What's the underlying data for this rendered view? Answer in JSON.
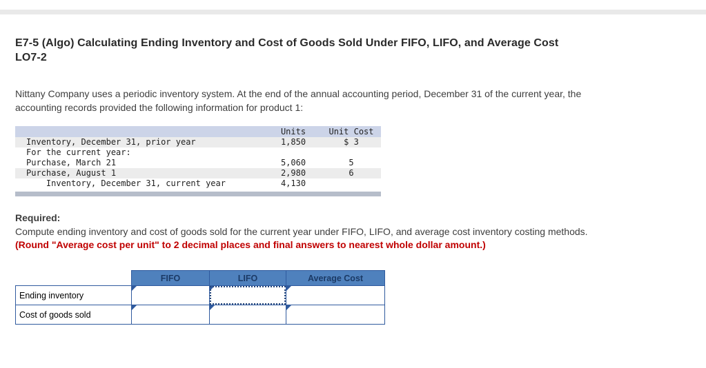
{
  "problem": {
    "title_line1": "E7-5 (Algo) Calculating Ending Inventory and Cost of Goods Sold Under FIFO, LIFO, and Average Cost",
    "title_line2": "LO7-2",
    "intro_line1": "Nittany Company uses a periodic inventory system. At the end of the annual accounting period, December 31 of the current year, the",
    "intro_line2": "accounting records provided the following information for product 1:"
  },
  "inventory_table": {
    "headers": {
      "units": "Units",
      "unit_cost": "Unit Cost"
    },
    "rows": [
      {
        "label": "Inventory, December 31, prior year",
        "units": "1,850",
        "unit_cost": "$ 3"
      },
      {
        "label": "For the current year:",
        "units": "",
        "unit_cost": ""
      },
      {
        "label": "Purchase, March 21",
        "units": "5,060",
        "unit_cost": "5"
      },
      {
        "label": "Purchase, August 1",
        "units": "2,980",
        "unit_cost": "6"
      },
      {
        "label": "    Inventory, December 31, current year",
        "units": "4,130",
        "unit_cost": ""
      }
    ]
  },
  "required": {
    "heading": "Required:",
    "instruction": "Compute ending inventory and cost of goods sold for the current year under FIFO, LIFO, and average cost inventory costing methods.",
    "rounding_note": "(Round \"Average cost per unit\" to 2 decimal places and final answers to nearest whole dollar amount.)"
  },
  "answer_table": {
    "columns": [
      "FIFO",
      "LIFO",
      "Average Cost"
    ],
    "rows": [
      {
        "label": "Ending inventory",
        "values": [
          "",
          "",
          ""
        ]
      },
      {
        "label": "Cost of goods sold",
        "values": [
          "",
          "",
          ""
        ]
      }
    ]
  },
  "colors": {
    "accent_blue": "#4f81bd",
    "border_blue": "#2f5a9e",
    "header_row_bg": "#ccd4e8",
    "shaded_row_bg": "#ececec",
    "note_red": "#c00000",
    "top_strip": "#e9e9e9"
  }
}
